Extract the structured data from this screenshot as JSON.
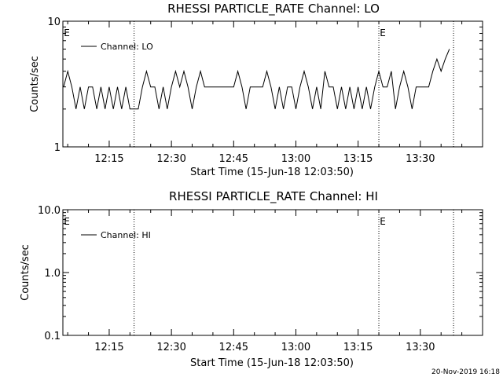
{
  "timestamp": "20-Nov-2019 16:18",
  "chart_data": [
    {
      "type": "line",
      "title": "RHESSI PARTICLE_RATE Channel: LO",
      "xlabel": "Start Time (15-Jun-18 12:03:50)",
      "ylabel": "Counts/sec",
      "yscale": "log",
      "ylim": [
        1,
        10
      ],
      "ytick_labels": [
        "1",
        "10"
      ],
      "xlim": [
        "12:03:50",
        "13:45:00"
      ],
      "xtick_labels": [
        "12:15",
        "12:30",
        "12:45",
        "13:00",
        "13:15",
        "13:30"
      ],
      "event_lines": [
        "12:21",
        "13:20",
        "13:38"
      ],
      "event_labels": [
        "E",
        "E"
      ],
      "legend": "top-left",
      "series": [
        {
          "name": "Channel: LO",
          "x": [
            "12:04:00",
            "12:05:00",
            "12:06:00",
            "12:07:00",
            "12:08:00",
            "12:09:00",
            "12:10:00",
            "12:11:00",
            "12:12:00",
            "12:13:00",
            "12:14:00",
            "12:15:00",
            "12:16:00",
            "12:17:00",
            "12:18:00",
            "12:19:00",
            "12:20:00",
            "12:21:00",
            "12:22:00",
            "12:23:00",
            "12:24:00",
            "12:25:00",
            "12:26:00",
            "12:27:00",
            "12:28:00",
            "12:29:00",
            "12:30:00",
            "12:31:00",
            "12:32:00",
            "12:33:00",
            "12:34:00",
            "12:35:00",
            "12:36:00",
            "12:37:00",
            "12:38:00",
            "12:39:00",
            "12:40:00",
            "12:41:00",
            "12:42:00",
            "12:43:00",
            "12:44:00",
            "12:45:00",
            "12:46:00",
            "12:47:00",
            "12:48:00",
            "12:49:00",
            "12:50:00",
            "12:51:00",
            "12:52:00",
            "12:53:00",
            "12:54:00",
            "12:55:00",
            "12:56:00",
            "12:57:00",
            "12:58:00",
            "12:59:00",
            "13:00:00",
            "13:01:00",
            "13:02:00",
            "13:03:00",
            "13:04:00",
            "13:05:00",
            "13:06:00",
            "13:07:00",
            "13:08:00",
            "13:09:00",
            "13:10:00",
            "13:11:00",
            "13:12:00",
            "13:13:00",
            "13:14:00",
            "13:15:00",
            "13:16:00",
            "13:17:00",
            "13:18:00",
            "13:19:00",
            "13:20:00",
            "13:21:00",
            "13:22:00",
            "13:23:00",
            "13:24:00",
            "13:25:00",
            "13:26:00",
            "13:27:00",
            "13:28:00",
            "13:29:00",
            "13:30:00",
            "13:31:00",
            "13:32:00",
            "13:33:00",
            "13:34:00",
            "13:35:00",
            "13:36:00",
            "13:37:00"
          ],
          "y": [
            3,
            4,
            3,
            2,
            3,
            2,
            3,
            3,
            2,
            3,
            2,
            3,
            2,
            3,
            2,
            3,
            2,
            2,
            2,
            3,
            4,
            3,
            3,
            2,
            3,
            2,
            3,
            4,
            3,
            4,
            3,
            2,
            3,
            4,
            3,
            3,
            3,
            3,
            3,
            3,
            3,
            3,
            4,
            3,
            2,
            3,
            3,
            3,
            3,
            4,
            3,
            2,
            3,
            2,
            3,
            3,
            2,
            3,
            4,
            3,
            2,
            3,
            2,
            4,
            3,
            3,
            2,
            3,
            2,
            3,
            2,
            3,
            2,
            3,
            2,
            3,
            4,
            3,
            3,
            4,
            2,
            3,
            4,
            3,
            2,
            3,
            3,
            3,
            3,
            4,
            5,
            4,
            5,
            6
          ]
        }
      ]
    },
    {
      "type": "line",
      "title": "RHESSI PARTICLE_RATE Channel: HI",
      "xlabel": "Start Time (15-Jun-18 12:03:50)",
      "ylabel": "Counts/sec",
      "yscale": "log",
      "ylim": [
        0.1,
        10
      ],
      "ytick_labels": [
        "0.1",
        "1.0",
        "10.0"
      ],
      "xlim": [
        "12:03:50",
        "13:45:00"
      ],
      "xtick_labels": [
        "12:15",
        "12:30",
        "12:45",
        "13:00",
        "13:15",
        "13:30"
      ],
      "event_lines": [
        "12:21",
        "13:20",
        "13:38"
      ],
      "event_labels": [
        "E",
        "E"
      ],
      "legend": "top-left",
      "series": [
        {
          "name": "Channel: HI",
          "x": [],
          "y": []
        }
      ]
    }
  ]
}
